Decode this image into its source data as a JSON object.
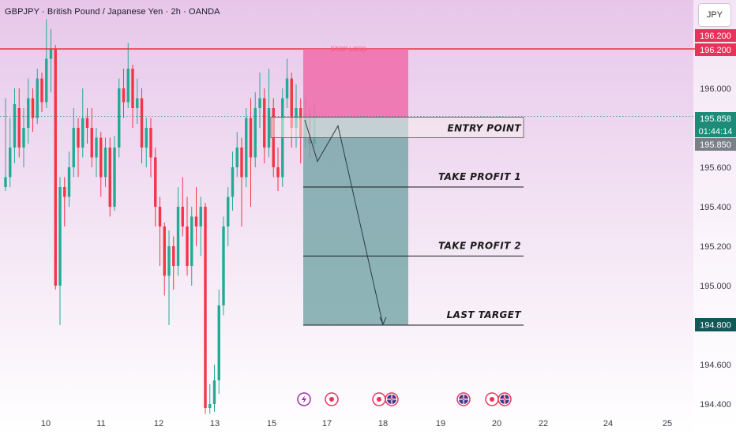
{
  "header": {
    "title": "GBPJPY · British Pound / Japanese Yen · 2h · OANDA",
    "currency_button": "JPY"
  },
  "colors": {
    "background_top": "#e9c9ec",
    "background_bottom": "#ffffff",
    "up_candle": "#22ab94",
    "down_candle": "#f23645",
    "stop_zone": "#f06ba9",
    "target_zone": "#6fa3a4",
    "resistance_line": "#e8323c",
    "current_price_tag": "#1c8b78",
    "resistance_tag": "#e8325a",
    "target_tag": "#115856"
  },
  "price_axis": {
    "ticks": [
      "196.000",
      "195.600",
      "195.400",
      "195.200",
      "195.000",
      "194.600",
      "194.400"
    ]
  },
  "price_tags": {
    "resistance_1": "196.200",
    "resistance_2": "196.200",
    "current_price": "195.858",
    "countdown": "01:44:14",
    "entry_price": "195.850",
    "last_target": "194.800"
  },
  "time_axis": {
    "labels": [
      "10",
      "11",
      "12",
      "13",
      "15",
      "17",
      "18",
      "19",
      "20",
      "22",
      "24",
      "25"
    ]
  },
  "annotations": {
    "stop_loss": "STOP LOSS",
    "entry": "ENTRY POINT",
    "tp1": "TAKE PROFIT 1",
    "tp2": "TAKE PROFIT 2",
    "last_target": "LAST TARGET"
  },
  "chart_data": {
    "type": "candlestick",
    "symbol": "GBPJPY",
    "interval": "2h",
    "ylim": [
      194.35,
      196.45
    ],
    "resistance_level": 196.2,
    "trade_setup": {
      "direction": "short",
      "stop_loss": 196.2,
      "entry": 195.85,
      "take_profit_1": 195.5,
      "take_profit_2": 195.15,
      "last_target": 194.8
    },
    "event_markers": [
      "lightning",
      "dot",
      "dot",
      "flag-uk",
      "flag-uk",
      "dot",
      "flag-uk"
    ],
    "candles": [
      [
        195.5,
        195.55,
        195.95,
        195.48
      ],
      [
        195.55,
        195.7,
        195.85,
        195.5
      ],
      [
        195.7,
        195.92,
        196.0,
        195.62
      ],
      [
        195.9,
        195.7,
        196.0,
        195.65
      ],
      [
        195.7,
        195.8,
        195.9,
        195.6
      ],
      [
        195.8,
        195.95,
        196.05,
        195.72
      ],
      [
        195.95,
        195.85,
        196.0,
        195.78
      ],
      [
        195.85,
        196.05,
        196.1,
        195.82
      ],
      [
        196.05,
        195.93,
        196.08,
        195.88
      ],
      [
        195.93,
        196.15,
        196.35,
        195.9
      ],
      [
        196.15,
        196.2,
        196.3,
        195.98
      ],
      [
        196.2,
        195.0,
        196.22,
        194.98
      ],
      [
        195.0,
        195.5,
        195.55,
        194.8
      ],
      [
        195.5,
        195.45,
        195.55,
        195.3
      ],
      [
        195.45,
        195.6,
        195.68,
        195.4
      ],
      [
        195.6,
        195.8,
        195.9,
        195.55
      ],
      [
        195.8,
        195.7,
        195.85,
        195.55
      ],
      [
        195.7,
        195.85,
        196.0,
        195.65
      ],
      [
        195.85,
        195.8,
        195.9,
        195.72
      ],
      [
        195.8,
        195.65,
        195.9,
        195.6
      ],
      [
        195.65,
        195.75,
        195.8,
        195.55
      ],
      [
        195.75,
        195.55,
        195.78,
        195.45
      ],
      [
        195.55,
        195.7,
        195.75,
        195.5
      ],
      [
        195.7,
        195.4,
        195.75,
        195.35
      ],
      [
        195.4,
        195.7,
        195.76,
        195.38
      ],
      [
        195.7,
        196.0,
        196.05,
        195.65
      ],
      [
        196.0,
        195.93,
        196.1,
        195.85
      ],
      [
        195.93,
        196.1,
        196.23,
        195.9
      ],
      [
        196.1,
        195.9,
        196.12,
        195.8
      ],
      [
        195.9,
        195.95,
        196.05,
        195.82
      ],
      [
        195.95,
        195.7,
        196.0,
        195.62
      ],
      [
        195.7,
        195.8,
        195.85,
        195.6
      ],
      [
        195.8,
        195.65,
        195.85,
        195.55
      ],
      [
        195.65,
        195.4,
        195.7,
        195.3
      ],
      [
        195.4,
        195.3,
        195.45,
        195.1
      ],
      [
        195.3,
        195.05,
        195.32,
        194.95
      ],
      [
        195.05,
        195.2,
        195.28,
        194.8
      ],
      [
        195.2,
        195.1,
        195.25,
        194.98
      ],
      [
        195.1,
        195.4,
        195.5,
        195.05
      ],
      [
        195.4,
        195.3,
        195.55,
        195.25
      ],
      [
        195.3,
        195.1,
        195.45,
        195.05
      ],
      [
        195.1,
        195.35,
        195.4,
        195.0
      ],
      [
        195.35,
        195.3,
        195.5,
        195.2
      ],
      [
        195.3,
        195.4,
        195.45,
        195.15
      ],
      [
        195.4,
        194.38,
        195.42,
        194.35
      ],
      [
        194.38,
        194.4,
        194.5,
        194.35
      ],
      [
        194.4,
        194.52,
        194.6,
        194.36
      ],
      [
        194.52,
        194.9,
        194.98,
        194.45
      ],
      [
        194.9,
        195.3,
        195.35,
        194.85
      ],
      [
        195.3,
        195.45,
        195.5,
        195.2
      ],
      [
        195.45,
        195.6,
        195.68,
        195.38
      ],
      [
        195.6,
        195.7,
        195.78,
        195.55
      ],
      [
        195.7,
        195.55,
        195.75,
        195.3
      ],
      [
        195.55,
        195.85,
        195.9,
        195.5
      ],
      [
        195.85,
        195.65,
        195.95,
        195.4
      ],
      [
        195.65,
        195.9,
        195.98,
        195.6
      ],
      [
        195.9,
        195.95,
        196.08,
        195.8
      ],
      [
        195.95,
        195.7,
        196.0,
        195.62
      ],
      [
        195.7,
        195.9,
        196.1,
        195.65
      ],
      [
        195.9,
        195.6,
        195.95,
        195.55
      ],
      [
        195.6,
        195.55,
        195.7,
        195.48
      ],
      [
        195.55,
        195.95,
        196.0,
        195.5
      ],
      [
        195.95,
        196.05,
        196.15,
        195.9
      ],
      [
        196.05,
        195.8,
        196.08,
        195.7
      ],
      [
        195.8,
        195.9,
        196.02,
        195.7
      ],
      [
        195.9,
        195.75,
        195.95,
        195.62
      ],
      [
        195.75,
        195.85,
        195.95,
        195.7
      ],
      [
        195.85,
        195.72,
        195.9,
        195.65
      ],
      [
        195.72,
        195.86,
        195.92,
        195.7
      ]
    ]
  }
}
